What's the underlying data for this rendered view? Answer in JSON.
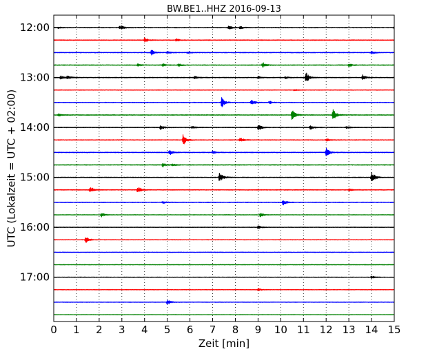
{
  "chart_data": {
    "type": "line",
    "chart_kind": "helicorder",
    "title": "BW.BE1..HHZ 2016-09-13",
    "xlabel": "Zeit  [min]",
    "ylabel": "UTC (Lokalzeit = UTC + 02:00)",
    "xlim": [
      0,
      15
    ],
    "x_ticks": [
      "0",
      "1",
      "2",
      "3",
      "4",
      "5",
      "6",
      "7",
      "8",
      "9",
      "10",
      "11",
      "12",
      "13",
      "14",
      "15"
    ],
    "x_grid": "dotted vertical",
    "y_tick_labels": [
      "12:00",
      "13:00",
      "14:00",
      "15:00",
      "16:00",
      "17:00"
    ],
    "trace_interval_min": 15,
    "color_cycle": [
      "#000000",
      "#ff0000",
      "#0000ff",
      "#008000"
    ],
    "traces": [
      {
        "start": "12:00",
        "color": "#000000",
        "noise": 0.5,
        "events": [
          [
            0.2,
            1
          ],
          [
            2.9,
            2
          ],
          [
            3.0,
            1.5
          ],
          [
            7.7,
            3
          ],
          [
            8.2,
            2.5
          ],
          [
            15.0,
            2
          ]
        ]
      },
      {
        "start": "12:15",
        "color": "#ff0000",
        "noise": 0.5,
        "events": [
          [
            4.0,
            3.5
          ],
          [
            5.4,
            2
          ]
        ]
      },
      {
        "start": "12:30",
        "color": "#0000ff",
        "noise": 0.5,
        "events": [
          [
            4.3,
            4
          ],
          [
            5.0,
            1.5
          ],
          [
            5.9,
            1.5
          ],
          [
            14.0,
            2
          ]
        ]
      },
      {
        "start": "12:45",
        "color": "#008000",
        "noise": 0.5,
        "events": [
          [
            3.7,
            2
          ],
          [
            4.8,
            2
          ],
          [
            5.5,
            2
          ],
          [
            9.2,
            4
          ],
          [
            13.0,
            2.5
          ]
        ]
      },
      {
        "start": "13:00",
        "color": "#000000",
        "noise": 0.5,
        "events": [
          [
            0.3,
            2.5
          ],
          [
            0.6,
            3
          ],
          [
            6.2,
            2
          ],
          [
            9.0,
            1.5
          ],
          [
            10.2,
            1.5
          ],
          [
            11.1,
            9
          ],
          [
            13.6,
            4
          ]
        ]
      },
      {
        "start": "13:15",
        "color": "#ff0000",
        "noise": 0.4,
        "events": [
          [
            10.6,
            1
          ]
        ]
      },
      {
        "start": "13:30",
        "color": "#0000ff",
        "noise": 0.5,
        "events": [
          [
            7.4,
            7
          ],
          [
            8.7,
            5
          ],
          [
            9.5,
            2
          ]
        ]
      },
      {
        "start": "13:45",
        "color": "#008000",
        "noise": 0.5,
        "events": [
          [
            0.2,
            2
          ],
          [
            10.5,
            8
          ],
          [
            12.3,
            9
          ]
        ]
      },
      {
        "start": "14:00",
        "color": "#000000",
        "noise": 0.5,
        "events": [
          [
            4.7,
            3
          ],
          [
            6.1,
            2
          ],
          [
            9.0,
            5
          ],
          [
            11.3,
            3
          ],
          [
            12.9,
            2
          ]
        ]
      },
      {
        "start": "14:15",
        "color": "#ff0000",
        "noise": 0.5,
        "events": [
          [
            5.7,
            8
          ],
          [
            8.2,
            3.5
          ],
          [
            12.0,
            2
          ]
        ]
      },
      {
        "start": "14:30",
        "color": "#0000ff",
        "noise": 0.5,
        "events": [
          [
            5.1,
            4
          ],
          [
            7.0,
            2
          ],
          [
            12.0,
            7
          ]
        ]
      },
      {
        "start": "14:45",
        "color": "#008000",
        "noise": 0.5,
        "events": [
          [
            4.8,
            3
          ],
          [
            5.2,
            2
          ]
        ]
      },
      {
        "start": "15:00",
        "color": "#000000",
        "noise": 0.5,
        "events": [
          [
            7.3,
            8
          ],
          [
            14.0,
            9
          ]
        ]
      },
      {
        "start": "15:15",
        "color": "#ff0000",
        "noise": 0.5,
        "events": [
          [
            1.6,
            5
          ],
          [
            3.7,
            5
          ],
          [
            13.0,
            2
          ]
        ]
      },
      {
        "start": "15:30",
        "color": "#0000ff",
        "noise": 0.5,
        "events": [
          [
            4.8,
            1.5
          ],
          [
            10.1,
            4
          ]
        ]
      },
      {
        "start": "15:45",
        "color": "#008000",
        "noise": 0.4,
        "events": [
          [
            2.1,
            3
          ],
          [
            9.1,
            3
          ]
        ]
      },
      {
        "start": "16:00",
        "color": "#000000",
        "noise": 0.4,
        "events": [
          [
            9.0,
            2.5
          ]
        ]
      },
      {
        "start": "16:15",
        "color": "#ff0000",
        "noise": 0.4,
        "events": [
          [
            1.4,
            6
          ]
        ]
      },
      {
        "start": "16:30",
        "color": "#0000ff",
        "noise": 0.4,
        "events": []
      },
      {
        "start": "16:45",
        "color": "#008000",
        "noise": 0.4,
        "events": []
      },
      {
        "start": "17:00",
        "color": "#000000",
        "noise": 0.4,
        "events": [
          [
            14.0,
            2
          ]
        ]
      },
      {
        "start": "17:15",
        "color": "#ff0000",
        "noise": 0.4,
        "events": [
          [
            9.0,
            2
          ]
        ]
      },
      {
        "start": "17:30",
        "color": "#0000ff",
        "noise": 0.4,
        "events": [
          [
            5.0,
            4
          ]
        ]
      },
      {
        "start": "17:45",
        "color": "#008000",
        "noise": 0.3,
        "events": []
      }
    ]
  }
}
